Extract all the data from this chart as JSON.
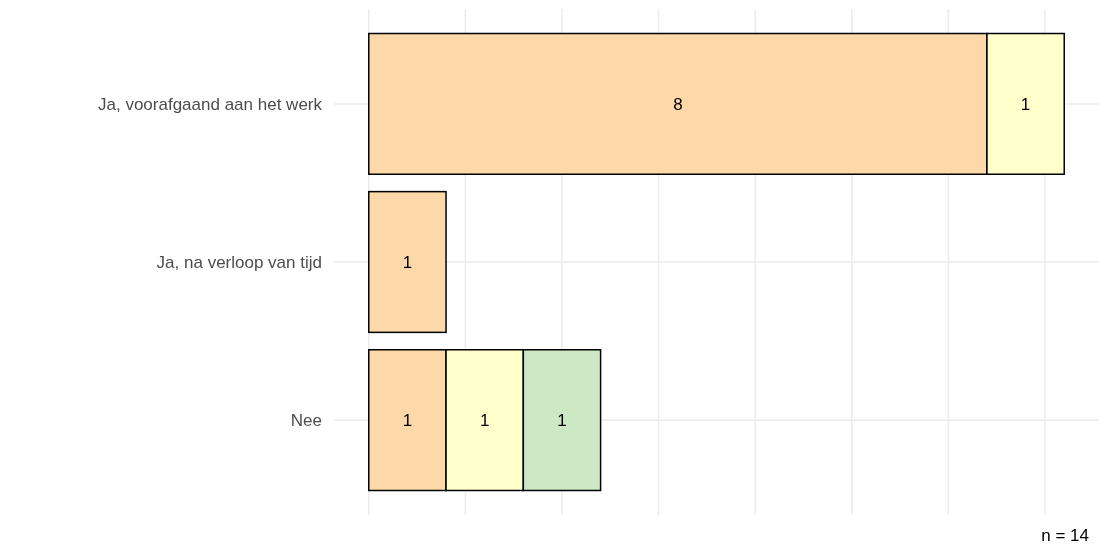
{
  "chart_data": {
    "type": "bar",
    "orientation": "horizontal",
    "stacked": true,
    "categories": [
      "Ja, voorafgaand aan het werk",
      "Ja, na verloop van tijd",
      "Nee"
    ],
    "series": [
      {
        "color": "#fdd9aa",
        "values": [
          8,
          1,
          1
        ]
      },
      {
        "color": "#ffffcc",
        "values": [
          1,
          null,
          1
        ]
      },
      {
        "color": "#cce8c5",
        "values": [
          null,
          null,
          1
        ]
      }
    ],
    "xlim": [
      -0.45,
      9.45
    ],
    "xticks": [
      {
        "value": 0,
        "label": null
      },
      {
        "value": 1.25,
        "label": null
      },
      {
        "value": 2.5,
        "label": null
      },
      {
        "value": 3.75,
        "label": null
      },
      {
        "value": 5,
        "label": null
      },
      {
        "value": 6.25,
        "label": null
      },
      {
        "value": 7.5,
        "label": null
      },
      {
        "value": 8.75,
        "label": null
      }
    ],
    "tick_labels": "y",
    "grid": true,
    "data_labels": true,
    "annotations": [
      "n = 14"
    ]
  }
}
